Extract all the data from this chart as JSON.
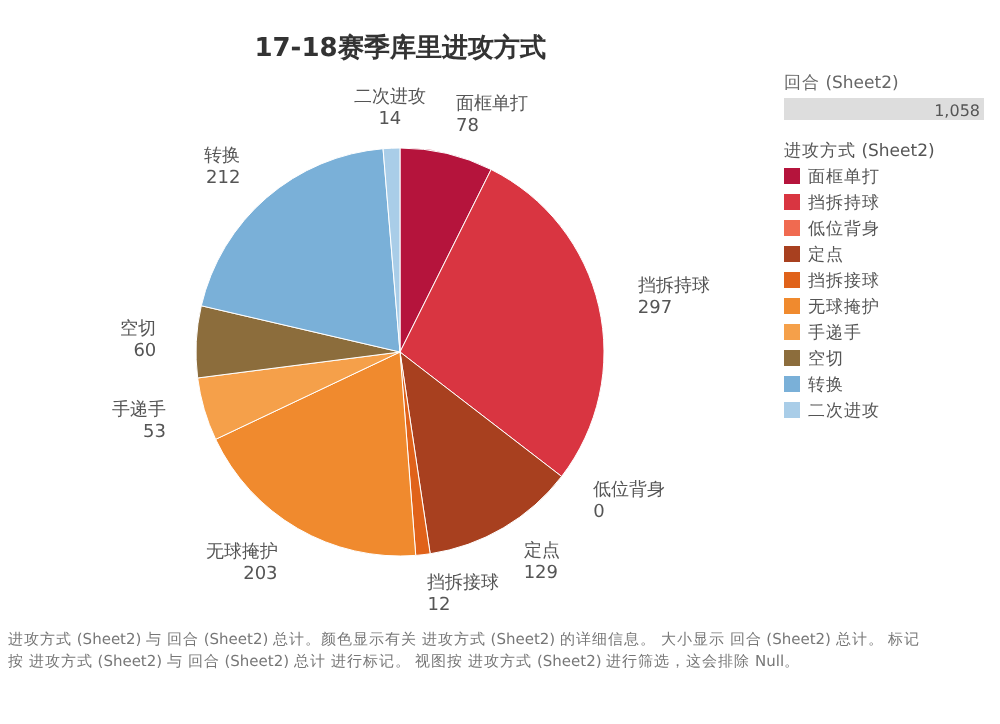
{
  "chart_data": {
    "type": "pie",
    "title": "17-18赛季库里进攻方式",
    "categories": [
      "面框单打",
      "挡拆持球",
      "低位背身",
      "定点",
      "挡拆接球",
      "无球掩护",
      "手递手",
      "空切",
      "转换",
      "二次进攻"
    ],
    "values": [
      78,
      297,
      0,
      129,
      12,
      203,
      53,
      60,
      212,
      14
    ],
    "colors": [
      "#b5143c",
      "#d93541",
      "#f06a50",
      "#a8401f",
      "#e0621a",
      "#f08a2e",
      "#f5a04a",
      "#8c6d3c",
      "#7ab0d8",
      "#a9cde8"
    ],
    "value_labels": [
      "78",
      "297",
      "0",
      "129",
      "12",
      "203",
      "53",
      "60",
      "212",
      "14"
    ],
    "legend": "right",
    "legend_title": "进攻方式 (Sheet2)",
    "annotations": [
      "回合 (Sheet2)",
      "1,058",
      "进攻方式 (Sheet2) 与 回合 (Sheet2) 总计。颜色显示有关 进攻方式 (Sheet2) 的详细信息。 大小显示 回合 (Sheet2) 总计。 标记按 进攻方式 (Sheet2) 与 回合 (Sheet2) 总计 进行标记。 视图按 进攻方式 (Sheet2) 进行筛选，这会排除 Null。"
    ]
  }
}
